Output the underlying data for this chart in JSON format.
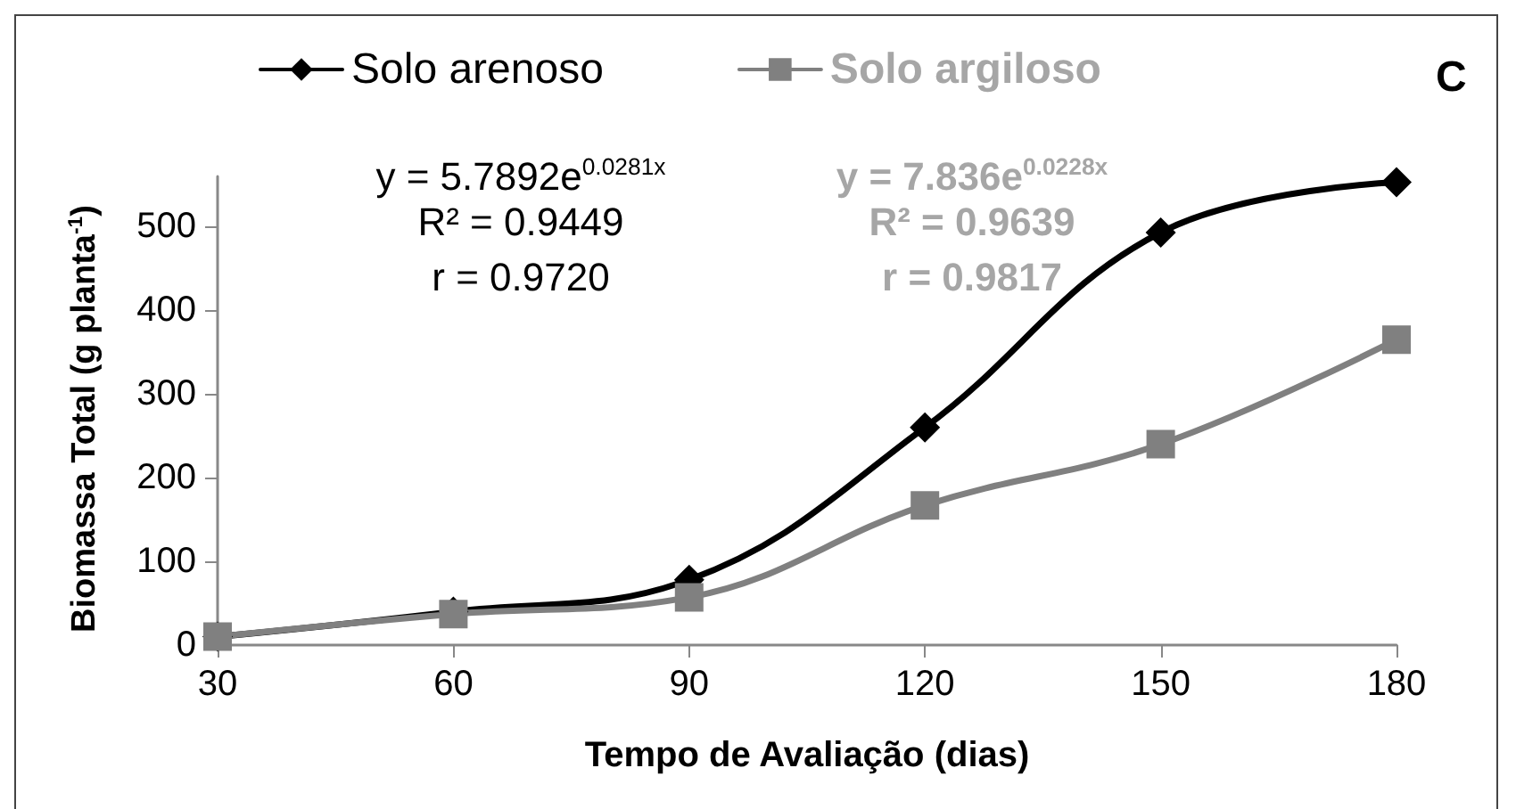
{
  "chart_data": {
    "type": "line",
    "title": "C",
    "xlabel": "Tempo de Avaliação (dias)",
    "ylabel": "Biomassa Total (g planta$^{-1}$)",
    "x": [
      30,
      60,
      90,
      120,
      150,
      180
    ],
    "xlim": [
      30,
      180
    ],
    "xticks": [
      30,
      60,
      90,
      120,
      150,
      180
    ],
    "ylim": [
      0,
      560
    ],
    "yticks": [
      0,
      100,
      200,
      300,
      400,
      500
    ],
    "series": [
      {
        "name": "Solo arenoso",
        "color": "#000000",
        "marker": "diamond",
        "values": [
          10,
          40,
          78,
          260,
          493,
          553
        ]
      },
      {
        "name": "Solo argiloso",
        "color": "#808080",
        "marker": "square",
        "values": [
          10,
          37,
          57,
          167,
          240,
          365
        ]
      }
    ],
    "annotations": [
      "y = 5.7892e$^{0.0281x}$",
      "R² = 0.9449",
      "r = 0.9720",
      "y = 7.836e$^{0.0228x}$",
      "R² = 0.9639",
      "r = 0.9817"
    ],
    "legend": "top",
    "grid": false,
    "line_style": "solid"
  }
}
